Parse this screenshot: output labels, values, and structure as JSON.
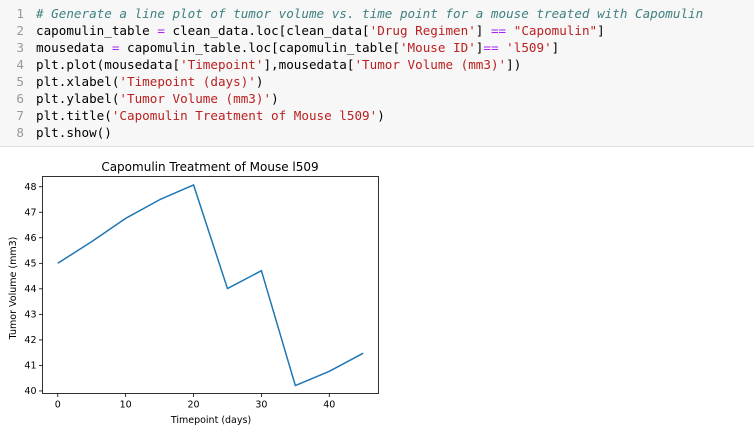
{
  "code_cell": {
    "lines": [
      {
        "num": "1",
        "tokens": [
          {
            "c": "comment",
            "t": "# Generate a line plot of tumor volume vs. time point for a mouse treated with Capomulin"
          }
        ]
      },
      {
        "num": "2",
        "tokens": [
          {
            "c": "plain",
            "t": "capomulin_table "
          },
          {
            "c": "op",
            "t": "="
          },
          {
            "c": "plain",
            "t": " clean_data.loc[clean_data["
          },
          {
            "c": "str",
            "t": "'Drug Regimen'"
          },
          {
            "c": "plain",
            "t": "] "
          },
          {
            "c": "op",
            "t": "=="
          },
          {
            "c": "plain",
            "t": " "
          },
          {
            "c": "str",
            "t": "\"Capomulin\""
          },
          {
            "c": "plain",
            "t": "]"
          }
        ]
      },
      {
        "num": "3",
        "tokens": [
          {
            "c": "plain",
            "t": "mousedata "
          },
          {
            "c": "op",
            "t": "="
          },
          {
            "c": "plain",
            "t": " capomulin_table.loc[capomulin_table["
          },
          {
            "c": "str",
            "t": "'Mouse ID'"
          },
          {
            "c": "plain",
            "t": "]"
          },
          {
            "c": "op",
            "t": "=="
          },
          {
            "c": "plain",
            "t": " "
          },
          {
            "c": "str",
            "t": "'l509'"
          },
          {
            "c": "plain",
            "t": "]"
          }
        ]
      },
      {
        "num": "4",
        "tokens": [
          {
            "c": "plain",
            "t": "plt.plot(mousedata["
          },
          {
            "c": "str",
            "t": "'Timepoint'"
          },
          {
            "c": "plain",
            "t": "],mousedata["
          },
          {
            "c": "str",
            "t": "'Tumor Volume (mm3)'"
          },
          {
            "c": "plain",
            "t": "])"
          }
        ]
      },
      {
        "num": "5",
        "tokens": [
          {
            "c": "plain",
            "t": "plt.xlabel("
          },
          {
            "c": "str",
            "t": "'Timepoint (days)'"
          },
          {
            "c": "plain",
            "t": ")"
          }
        ]
      },
      {
        "num": "6",
        "tokens": [
          {
            "c": "plain",
            "t": "plt.ylabel("
          },
          {
            "c": "str",
            "t": "'Tumor Volume (mm3)'"
          },
          {
            "c": "plain",
            "t": ")"
          }
        ]
      },
      {
        "num": "7",
        "tokens": [
          {
            "c": "plain",
            "t": "plt.title("
          },
          {
            "c": "str",
            "t": "'Capomulin Treatment of Mouse l509'"
          },
          {
            "c": "plain",
            "t": ")"
          }
        ]
      },
      {
        "num": "8",
        "tokens": [
          {
            "c": "plain",
            "t": "plt.show()"
          }
        ]
      }
    ]
  },
  "chart_data": {
    "type": "line",
    "title": "Capomulin Treatment of Mouse l509",
    "xlabel": "Timepoint (days)",
    "ylabel": "Tumor Volume (mm3)",
    "x": [
      0,
      5,
      10,
      15,
      20,
      25,
      30,
      35,
      40,
      45
    ],
    "series": [
      {
        "values": [
          45.0,
          45.85,
          46.76,
          47.49,
          48.07,
          44.01,
          44.71,
          40.21,
          40.77,
          41.48
        ],
        "color": "#1f77b4"
      }
    ],
    "xlim": [
      -2.25,
      47.25
    ],
    "ylim": [
      39.9,
      48.4
    ],
    "xticks": [
      0,
      10,
      20,
      30,
      40
    ],
    "xtick_labels": [
      "0",
      "10",
      "20",
      "30",
      "40"
    ],
    "yticks": [
      40,
      41,
      42,
      43,
      44,
      45,
      46,
      47,
      48
    ],
    "ytick_labels": [
      "40",
      "41",
      "42",
      "43",
      "44",
      "45",
      "46",
      "47",
      "48"
    ],
    "grid": false,
    "legend": "none"
  }
}
